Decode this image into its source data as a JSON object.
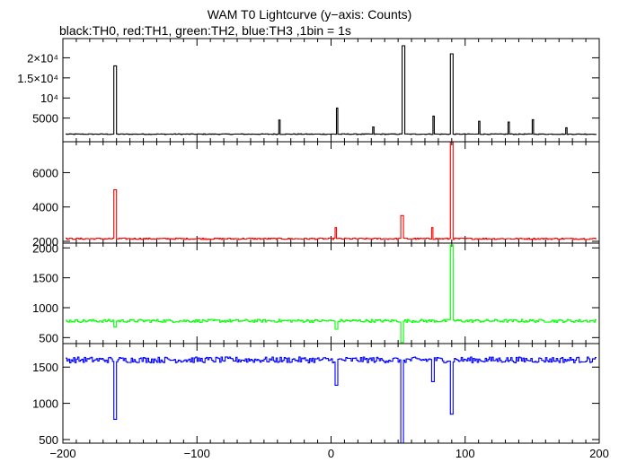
{
  "title": "WAM T0 Lightcurve (y−axis: Counts)",
  "subtitle": "black:TH0, red:TH1, green:TH2, blue:TH3 ,1bin = 1s",
  "chart_data": [
    {
      "type": "line",
      "series": [
        {
          "name": "TH0",
          "color": "#000000"
        }
      ],
      "xlim": [
        -200,
        200
      ],
      "ylim": [
        0,
        23000
      ],
      "yticks": [
        {
          "v": 5000,
          "t": "5000"
        },
        {
          "v": 10000,
          "t": "10⁴"
        },
        {
          "v": 15000,
          "t": "1.5×10⁴"
        },
        {
          "v": 20000,
          "t": "2×10⁴"
        }
      ],
      "xtick_labels": [],
      "baseline": 1000,
      "noise": 80,
      "spikes": [
        {
          "x": -162,
          "y": 18000,
          "w": 2
        },
        {
          "x": -39,
          "y": 4500,
          "w": 1
        },
        {
          "x": 4,
          "y": 7500,
          "w": 1
        },
        {
          "x": 31,
          "y": 2800,
          "w": 1
        },
        {
          "x": 53,
          "y": 23000,
          "w": 2
        },
        {
          "x": 76,
          "y": 5500,
          "w": 1
        },
        {
          "x": 89,
          "y": 21000,
          "w": 2
        },
        {
          "x": 110,
          "y": 4200,
          "w": 1
        },
        {
          "x": 132,
          "y": 4000,
          "w": 1
        },
        {
          "x": 150,
          "y": 4600,
          "w": 1
        },
        {
          "x": 175,
          "y": 2600,
          "w": 1
        }
      ]
    },
    {
      "type": "line",
      "series": [
        {
          "name": "TH1",
          "color": "#ff0000"
        }
      ],
      "xlim": [
        -200,
        200
      ],
      "ylim": [
        2000,
        7800
      ],
      "yticks": [
        {
          "v": 2000,
          "t": "2000"
        },
        {
          "v": 4000,
          "t": "4000"
        },
        {
          "v": 6000,
          "t": "6000"
        }
      ],
      "xtick_labels": [],
      "baseline": 2150,
      "noise": 40,
      "spikes": [
        {
          "x": -162,
          "y": 5000,
          "w": 2
        },
        {
          "x": 3,
          "y": 2800,
          "w": 1
        },
        {
          "x": 52,
          "y": 3500,
          "w": 2
        },
        {
          "x": 75,
          "y": 2800,
          "w": 1
        },
        {
          "x": 89,
          "y": 7800,
          "w": 2
        }
      ]
    },
    {
      "type": "line",
      "series": [
        {
          "name": "TH2",
          "color": "#00ff00"
        }
      ],
      "xlim": [
        -200,
        200
      ],
      "ylim": [
        400,
        2050
      ],
      "yticks": [
        {
          "v": 500,
          "t": "500"
        },
        {
          "v": 1000,
          "t": "1000"
        },
        {
          "v": 1500,
          "t": "1500"
        },
        {
          "v": 2000,
          "t": "2000"
        }
      ],
      "xtick_labels": [],
      "baseline": 780,
      "noise": 25,
      "spikes": [
        {
          "x": -162,
          "y": 680,
          "w": 2
        },
        {
          "x": 3,
          "y": 640,
          "w": 2
        },
        {
          "x": 52,
          "y": 420,
          "w": 2
        },
        {
          "x": 89,
          "y": 2050,
          "w": 2
        }
      ]
    },
    {
      "type": "line",
      "series": [
        {
          "name": "TH3",
          "color": "#0000ff"
        }
      ],
      "xlim": [
        -200,
        200
      ],
      "ylim": [
        450,
        1800
      ],
      "yticks": [
        {
          "v": 500,
          "t": "500"
        },
        {
          "v": 1000,
          "t": "1000"
        },
        {
          "v": 1500,
          "t": "1500"
        }
      ],
      "xtick_labels": [
        "−200",
        "−100",
        "0",
        "100",
        "200"
      ],
      "baseline": 1600,
      "noise": 40,
      "spikes": [
        {
          "x": -162,
          "y": 780,
          "w": 2
        },
        {
          "x": 3,
          "y": 1250,
          "w": 2
        },
        {
          "x": 52,
          "y": 450,
          "w": 2
        },
        {
          "x": 75,
          "y": 1300,
          "w": 2
        },
        {
          "x": 89,
          "y": 850,
          "w": 2
        }
      ]
    }
  ]
}
